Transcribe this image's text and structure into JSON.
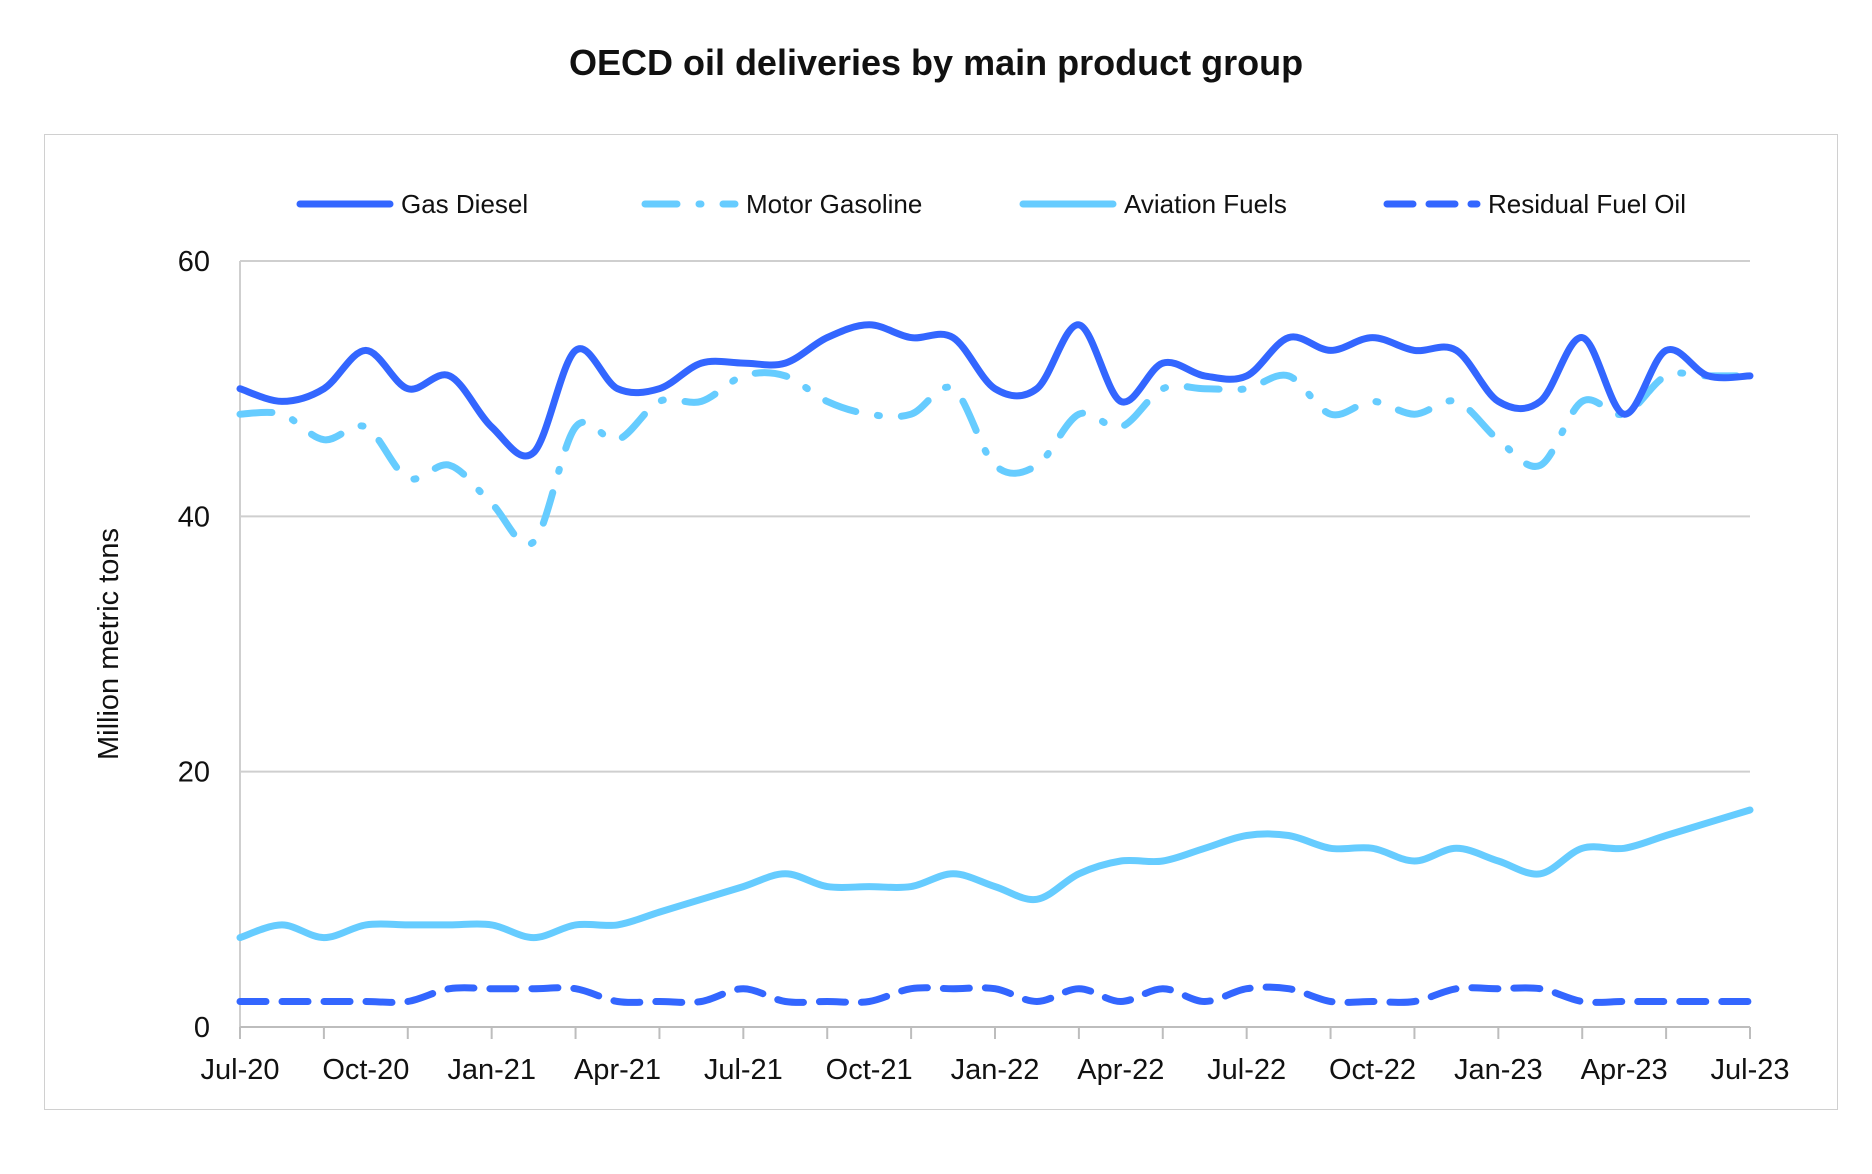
{
  "chart_data": {
    "type": "line",
    "title": "OECD oil deliveries by main product group",
    "xlabel": "",
    "ylabel": "Million metric tons",
    "ylim": [
      0,
      60
    ],
    "yticks": [
      "0",
      "20",
      "40",
      "60"
    ],
    "x": [
      "Jul-20",
      "Aug-20",
      "Sep-20",
      "Oct-20",
      "Nov-20",
      "Dec-20",
      "Jan-21",
      "Feb-21",
      "Mar-21",
      "Apr-21",
      "May-21",
      "Jun-21",
      "Jul-21",
      "Aug-21",
      "Sep-21",
      "Oct-21",
      "Nov-21",
      "Dec-21",
      "Jan-22",
      "Feb-22",
      "Mar-22",
      "Apr-22",
      "May-22",
      "Jun-22",
      "Jul-22",
      "Aug-22",
      "Sep-22",
      "Oct-22",
      "Nov-22",
      "Dec-22",
      "Jan-23",
      "Feb-23",
      "Mar-23",
      "Apr-23",
      "May-23",
      "Jun-23",
      "Jul-23"
    ],
    "x_tick_labels": [
      "Jul-20",
      "Oct-20",
      "Jan-21",
      "Apr-21",
      "Jul-21",
      "Oct-21",
      "Jan-22",
      "Apr-22",
      "Jul-22",
      "Oct-22",
      "Jan-23",
      "Apr-23",
      "Jul-23"
    ],
    "grid": "horizontal",
    "legend_position": "top",
    "series": [
      {
        "name": "Gas Diesel",
        "color": "#3366ff",
        "style": "solid",
        "values": [
          50,
          49,
          50,
          53,
          50,
          51,
          47,
          45,
          53,
          50,
          50,
          52,
          52,
          52,
          54,
          55,
          54,
          54,
          50,
          50,
          55,
          49,
          52,
          51,
          51,
          54,
          53,
          54,
          53,
          53,
          49,
          49,
          54,
          48,
          53,
          51,
          51
        ]
      },
      {
        "name": "Motor Gasoline",
        "color": "#66ccff",
        "style": "dashdot",
        "values": [
          48,
          48,
          46,
          47,
          43,
          44,
          41,
          38,
          47,
          46,
          49,
          49,
          51,
          51,
          49,
          48,
          48,
          50,
          44,
          44,
          48,
          47,
          50,
          50,
          50,
          51,
          48,
          49,
          48,
          49,
          46,
          44,
          49,
          48,
          51,
          51,
          51
        ]
      },
      {
        "name": "Aviation Fuels",
        "color": "#66ccff",
        "style": "solid",
        "values": [
          7,
          8,
          7,
          8,
          8,
          8,
          8,
          7,
          8,
          8,
          9,
          10,
          11,
          12,
          11,
          11,
          11,
          12,
          11,
          10,
          12,
          13,
          13,
          14,
          15,
          15,
          14,
          14,
          13,
          14,
          13,
          12,
          14,
          14,
          15,
          16,
          17
        ]
      },
      {
        "name": "Residual Fuel Oil",
        "color": "#3366ff",
        "style": "dashed",
        "values": [
          2,
          2,
          2,
          2,
          2,
          3,
          3,
          3,
          3,
          2,
          2,
          2,
          3,
          2,
          2,
          2,
          3,
          3,
          3,
          2,
          3,
          2,
          3,
          2,
          3,
          3,
          2,
          2,
          2,
          3,
          3,
          3,
          2,
          2,
          2,
          2,
          2
        ]
      }
    ]
  }
}
